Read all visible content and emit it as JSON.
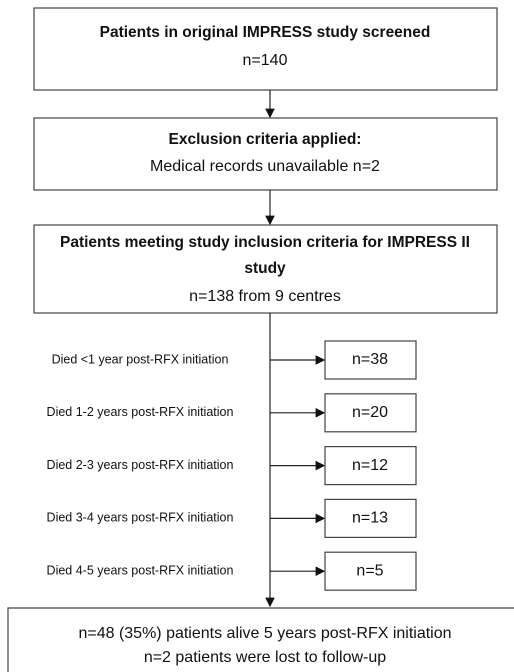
{
  "boxes": [
    {
      "title": "Patients in original IMPRESS study screened",
      "lines": [
        "n=140"
      ]
    },
    {
      "title": "Exclusion criteria applied:",
      "lines": [
        "Medical records unavailable n=2"
      ]
    },
    {
      "title": "Patients meeting study inclusion criteria for IMPRESS II study",
      "lines": [
        "n=138 from 9 centres"
      ]
    }
  ],
  "outcomes": [
    {
      "label": "Died <1 year post-RFX initiation",
      "count": "n=38"
    },
    {
      "label": "Died 1-2 years post-RFX initiation",
      "count": "n=20"
    },
    {
      "label": "Died 2-3 years post-RFX initiation",
      "count": "n=12"
    },
    {
      "label": "Died 3-4 years post-RFX initiation",
      "count": "n=13"
    },
    {
      "label": "Died 4-5 years post-RFX initiation",
      "count": "n=5"
    }
  ],
  "final": {
    "lines": [
      "n=48 (35%) patients alive 5 years post-RFX initiation",
      "n=2 patients were lost to follow-up"
    ]
  }
}
